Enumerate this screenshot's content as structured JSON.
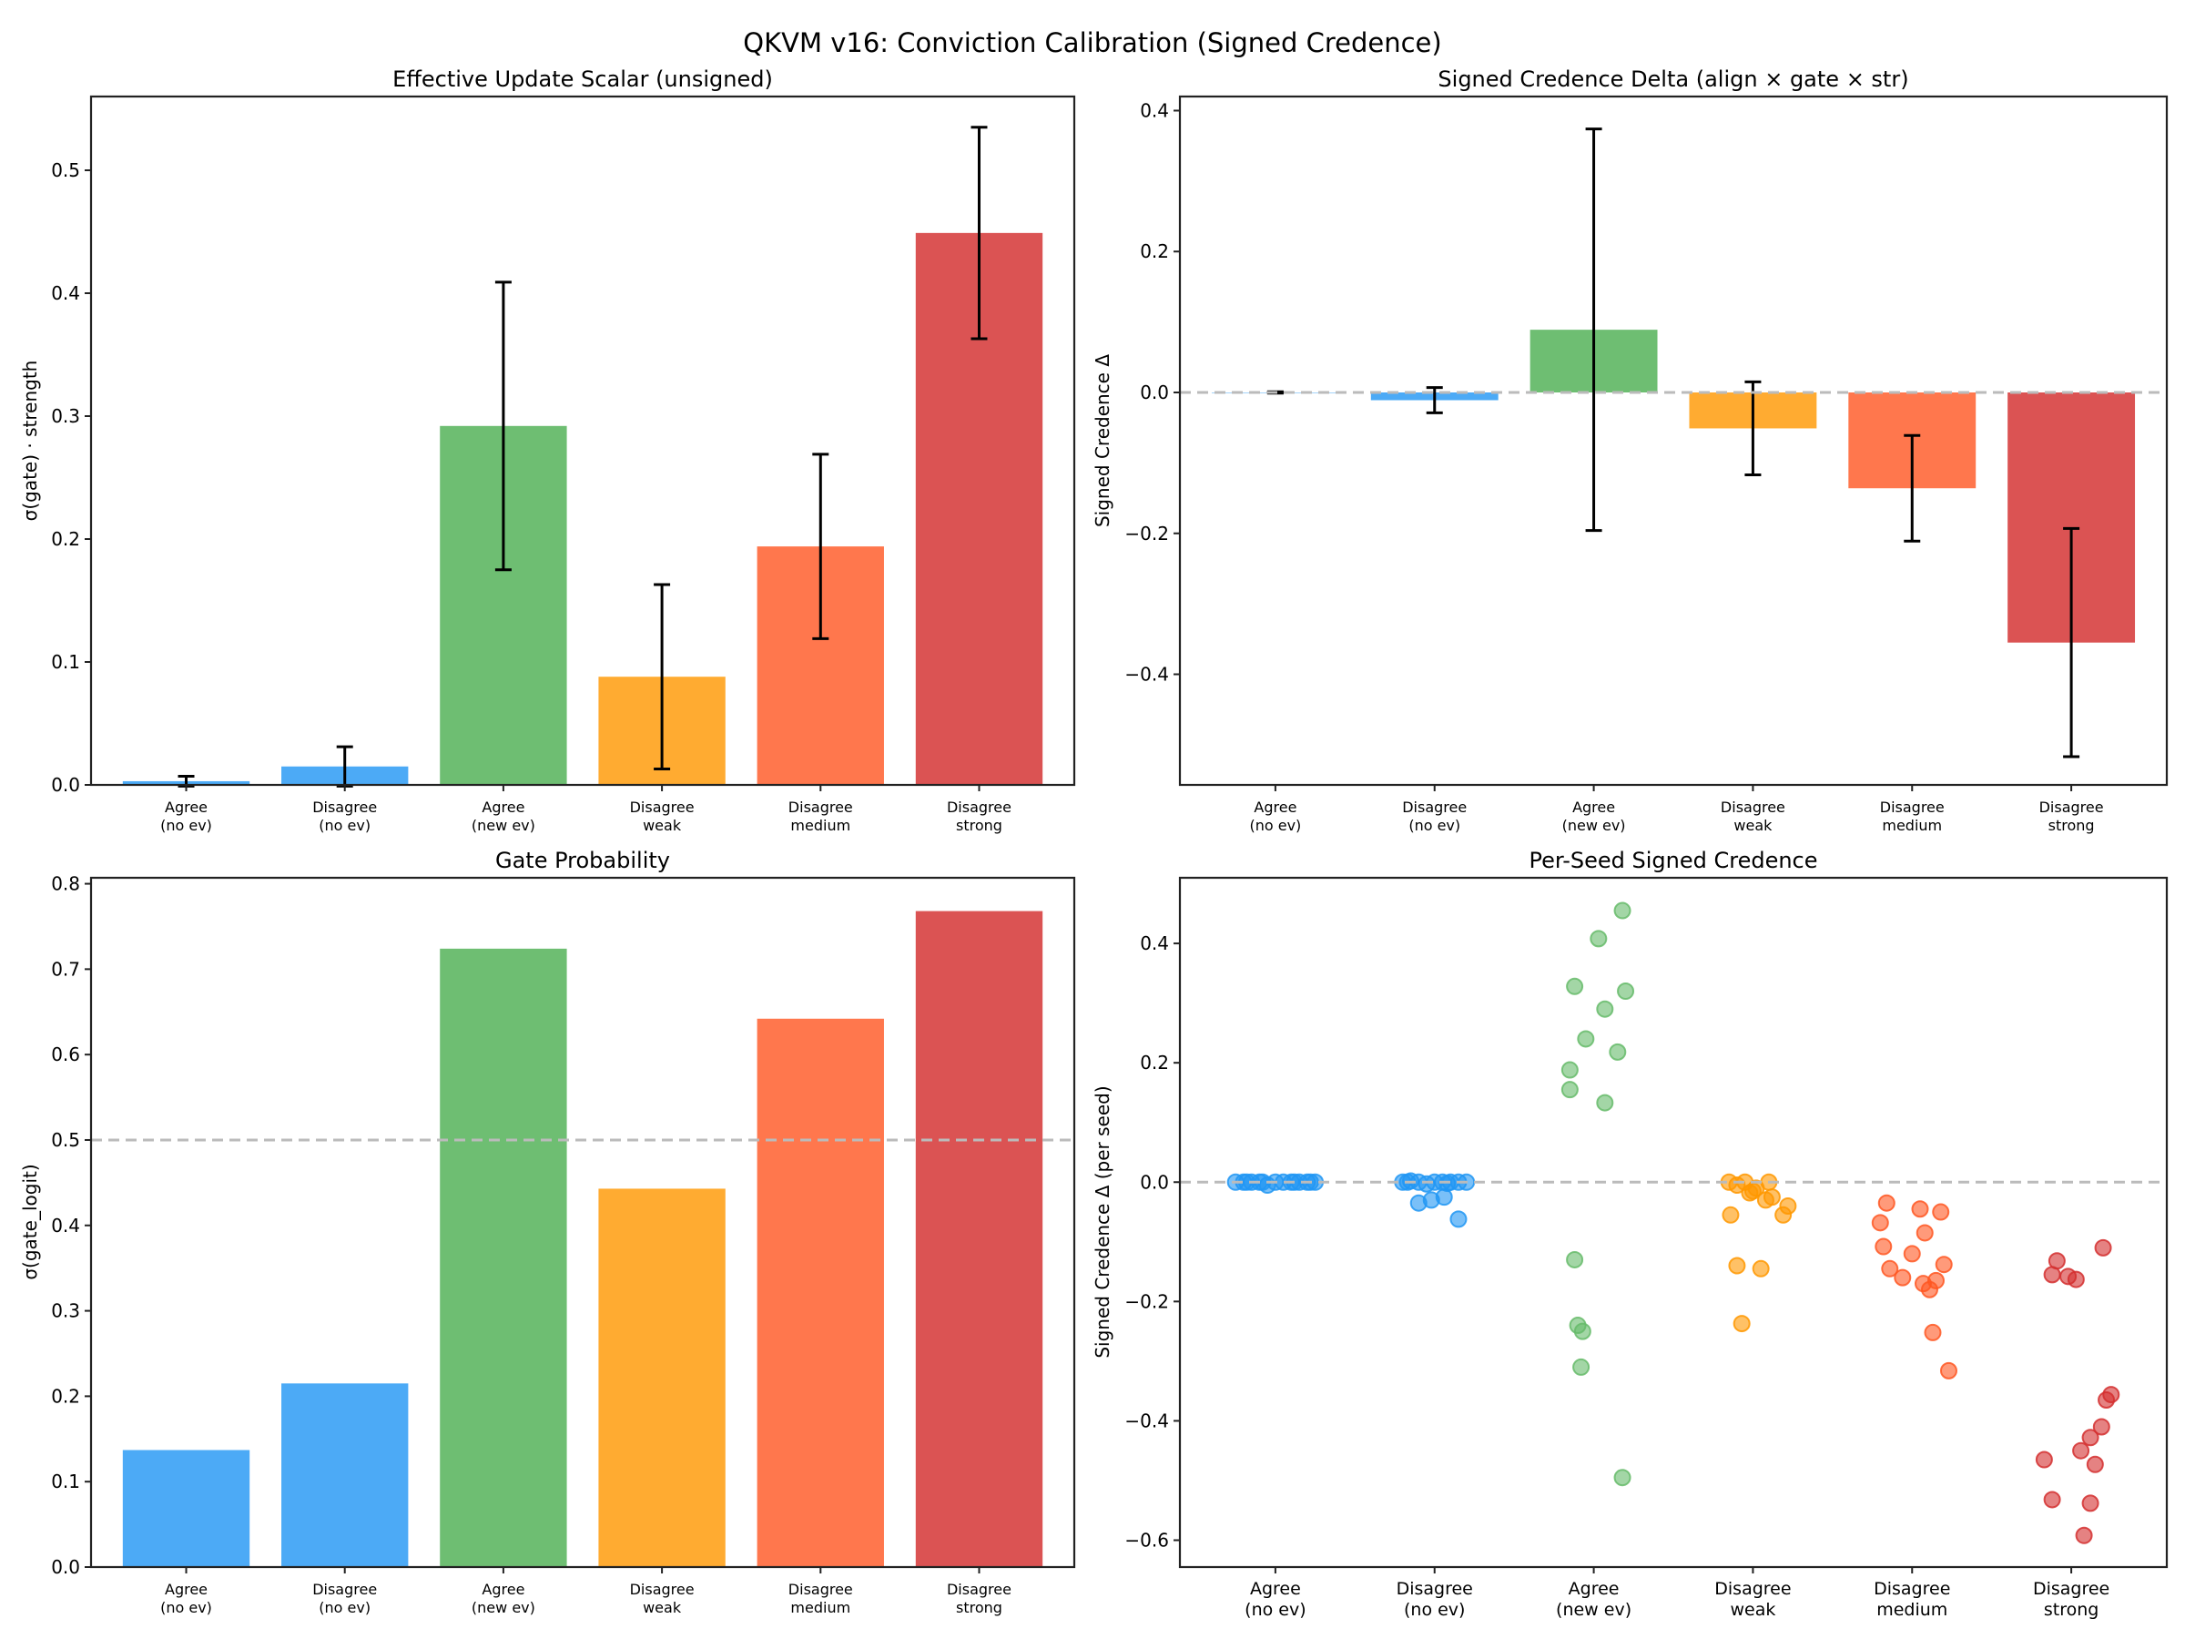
{
  "figure_title": "QKVM v16: Conviction Calibration (Signed Credence)",
  "colors": {
    "agree_no_ev": "#42a5f5",
    "disagree_no_ev": "#42a5f5",
    "agree_new_ev": "#66bb6a",
    "disagree_weak": "#ffa726",
    "disagree_medium": "#ff7043",
    "disagree_strong": "#d94a4a",
    "scatter_blue": "#2196f3",
    "scatter_green": "#66bb6a",
    "scatter_orange": "#ff9800",
    "scatter_coral": "#ff5722",
    "scatter_red": "#d32f2f",
    "reference_line": "#bbbbbb"
  },
  "chart_data": [
    {
      "id": "update-scalar",
      "type": "bar",
      "title": "Effective Update Scalar (unsigned)",
      "xlabel": "",
      "ylabel": "σ(gate) · strength",
      "categories": [
        "Agree\n(no ev)",
        "Disagree\n(no ev)",
        "Agree\n(new ev)",
        "Disagree\nweak",
        "Disagree\nmedium",
        "Disagree\nstrong"
      ],
      "values": [
        0.003,
        0.015,
        0.292,
        0.088,
        0.194,
        0.449
      ],
      "errors": [
        0.004,
        0.016,
        0.117,
        0.075,
        0.075,
        0.086
      ],
      "ylim": [
        0,
        0.56
      ],
      "yticks": [
        0.0,
        0.1,
        0.2,
        0.3,
        0.4,
        0.5
      ],
      "ytick_labels": [
        "0.0",
        "0.1",
        "0.2",
        "0.3",
        "0.4",
        "0.5"
      ],
      "reference_line": null,
      "grid": false
    },
    {
      "id": "signed-delta",
      "type": "bar",
      "title": "Signed Credence Delta (align × gate × str)",
      "xlabel": "",
      "ylabel": "Signed Credence Δ",
      "categories": [
        "Agree\n(no ev)",
        "Disagree\n(no ev)",
        "Agree\n(new ev)",
        "Disagree\nweak",
        "Disagree\nmedium",
        "Disagree\nstrong"
      ],
      "values": [
        0.0,
        -0.011,
        0.089,
        -0.051,
        -0.136,
        -0.355
      ],
      "errors": [
        0.001,
        0.018,
        0.285,
        0.066,
        0.075,
        0.162
      ],
      "ylim": [
        -0.557,
        0.42
      ],
      "yticks": [
        -0.4,
        -0.2,
        0.0,
        0.2,
        0.4
      ],
      "ytick_labels": [
        "−0.4",
        "−0.2",
        "0.0",
        "0.2",
        "0.4"
      ],
      "reference_line": 0.0,
      "grid": false
    },
    {
      "id": "gate-probability",
      "type": "bar",
      "title": "Gate Probability",
      "xlabel": "",
      "ylabel": "σ(gate_logit)",
      "categories": [
        "Agree\n(no ev)",
        "Disagree\n(no ev)",
        "Agree\n(new ev)",
        "Disagree\nweak",
        "Disagree\nmedium",
        "Disagree\nstrong"
      ],
      "values": [
        0.137,
        0.215,
        0.724,
        0.443,
        0.642,
        0.768
      ],
      "errors": null,
      "ylim": [
        0,
        0.807
      ],
      "yticks": [
        0.0,
        0.1,
        0.2,
        0.3,
        0.4,
        0.5,
        0.6,
        0.7,
        0.8
      ],
      "ytick_labels": [
        "0.0",
        "0.1",
        "0.2",
        "0.3",
        "0.4",
        "0.5",
        "0.6",
        "0.7",
        "0.8"
      ],
      "reference_line": 0.5,
      "grid": false
    },
    {
      "id": "per-seed",
      "type": "scatter",
      "title": "Per-Seed Signed Credence",
      "xlabel": "",
      "ylabel": "Signed Credence Δ (per seed)",
      "categories": [
        "Agree\n(no ev)",
        "Disagree\n(no ev)",
        "Agree\n(new ev)",
        "Disagree\nweak",
        "Disagree\nmedium",
        "Disagree\nstrong"
      ],
      "ylim": [
        -0.645,
        0.51
      ],
      "yticks": [
        -0.6,
        -0.4,
        -0.2,
        0.0,
        0.2,
        0.4
      ],
      "ytick_labels": [
        "−0.6",
        "−0.4",
        "−0.2",
        "0.0",
        "0.2",
        "0.4"
      ],
      "reference_line": 0.0,
      "grid": false,
      "series": [
        {
          "name": "Agree (no ev)",
          "color_key": "scatter_blue",
          "jitter": [
            -0.25,
            -0.2,
            -0.15,
            -0.1,
            -0.05,
            0.0,
            0.05,
            0.1,
            0.15,
            0.2,
            0.22,
            0.25,
            -0.08,
            0.12,
            -0.18
          ],
          "values": [
            0,
            0,
            0,
            0,
            -0.005,
            0,
            0,
            0,
            0,
            0,
            0,
            0,
            0,
            0,
            0
          ]
        },
        {
          "name": "Disagree (no ev)",
          "color_key": "scatter_blue",
          "jitter": [
            -0.2,
            -0.15,
            -0.1,
            -0.05,
            0.0,
            0.05,
            0.1,
            0.15,
            0.2,
            -0.1,
            -0.02,
            0.06,
            0.15,
            -0.17,
            0.08
          ],
          "values": [
            0,
            0.002,
            0,
            -0.003,
            0,
            0,
            0,
            0,
            0,
            -0.035,
            -0.03,
            -0.025,
            -0.062,
            0,
            -0.002
          ]
        },
        {
          "name": "Agree (new ev)",
          "color_key": "scatter_green",
          "jitter": [
            0.18,
            0.03,
            -0.12,
            0.2,
            0.07,
            -0.05,
            0.15,
            -0.15,
            -0.15,
            0.07,
            -0.12,
            -0.1,
            -0.07,
            -0.08,
            0.18
          ],
          "values": [
            0.455,
            0.408,
            0.328,
            0.32,
            0.29,
            0.24,
            0.218,
            0.188,
            0.155,
            0.133,
            -0.13,
            -0.24,
            -0.25,
            -0.31,
            -0.495
          ]
        },
        {
          "name": "Disagree weak",
          "color_key": "scatter_orange",
          "jitter": [
            -0.15,
            -0.05,
            0.1,
            -0.1,
            0.02,
            0.12,
            0.08,
            -0.02,
            0.22,
            -0.14,
            0.19,
            -0.1,
            0.05,
            0.0,
            -0.07
          ],
          "values": [
            0,
            0,
            0,
            -0.005,
            -0.01,
            -0.025,
            -0.03,
            -0.018,
            -0.04,
            -0.055,
            -0.055,
            -0.14,
            -0.145,
            -0.015,
            -0.237
          ]
        },
        {
          "name": "Disagree medium",
          "color_key": "scatter_coral",
          "jitter": [
            -0.16,
            0.05,
            0.18,
            -0.2,
            0.08,
            -0.18,
            0.0,
            0.2,
            -0.14,
            -0.06,
            0.07,
            0.15,
            0.11,
            0.13,
            0.23
          ],
          "values": [
            -0.035,
            -0.045,
            -0.05,
            -0.068,
            -0.085,
            -0.108,
            -0.12,
            -0.138,
            -0.145,
            -0.16,
            -0.17,
            -0.165,
            -0.18,
            -0.252,
            -0.316
          ]
        },
        {
          "name": "Disagree strong",
          "color_key": "scatter_red",
          "jitter": [
            0.2,
            -0.09,
            -0.12,
            -0.02,
            0.03,
            0.25,
            0.22,
            0.19,
            0.12,
            0.06,
            -0.17,
            0.15,
            -0.12,
            0.12,
            0.08
          ],
          "values": [
            -0.11,
            -0.132,
            -0.155,
            -0.158,
            -0.163,
            -0.356,
            -0.365,
            -0.41,
            -0.428,
            -0.45,
            -0.465,
            -0.473,
            -0.532,
            -0.538,
            -0.592
          ]
        }
      ]
    }
  ]
}
